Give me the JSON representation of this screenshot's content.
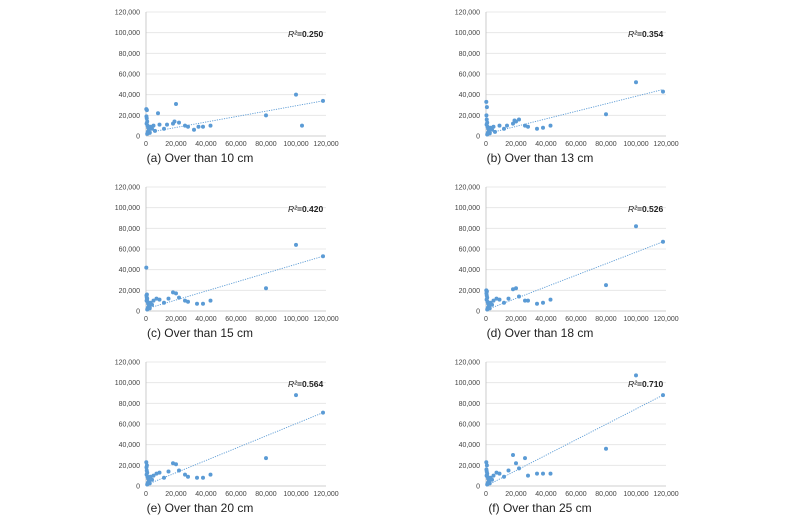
{
  "chart_data": [
    {
      "type": "scatter",
      "caption": "(a) Over than 10 cm",
      "r2_label": "R²",
      "r2_value": "=0.250",
      "xlim": [
        0,
        120000
      ],
      "ylim": [
        0,
        120000
      ],
      "x_ticks": [
        "0",
        "20,000",
        "40,000",
        "60,000",
        "80,000",
        "100,000",
        "120,000"
      ],
      "y_ticks": [
        "0",
        "20,000",
        "40,000",
        "60,000",
        "80,000",
        "100,000",
        "120,000"
      ],
      "trendline": {
        "x": [
          0,
          118000
        ],
        "y": [
          3000,
          34000
        ]
      },
      "points": [
        [
          200,
          26000
        ],
        [
          600,
          25000
        ],
        [
          300,
          19000
        ],
        [
          500,
          17000
        ],
        [
          800,
          14000
        ],
        [
          400,
          12000
        ],
        [
          1000,
          10000
        ],
        [
          1500,
          8000
        ],
        [
          2000,
          6000
        ],
        [
          1200,
          4000
        ],
        [
          2500,
          3000
        ],
        [
          800,
          2000
        ],
        [
          3000,
          9000
        ],
        [
          4000,
          7000
        ],
        [
          5000,
          10000
        ],
        [
          6000,
          5000
        ],
        [
          8000,
          22000
        ],
        [
          9000,
          11000
        ],
        [
          12000,
          7000
        ],
        [
          14000,
          11000
        ],
        [
          18000,
          12000
        ],
        [
          19000,
          14000
        ],
        [
          20000,
          31000
        ],
        [
          22000,
          13000
        ],
        [
          26000,
          10000
        ],
        [
          28000,
          9000
        ],
        [
          32000,
          6000
        ],
        [
          35000,
          9000
        ],
        [
          38000,
          9000
        ],
        [
          43000,
          10000
        ],
        [
          80000,
          20000
        ],
        [
          100000,
          40000
        ],
        [
          104000,
          10000
        ],
        [
          118000,
          34000
        ]
      ]
    },
    {
      "type": "scatter",
      "caption": "(b) Over than 13 cm",
      "r2_label": "R²",
      "r2_value": "=0.354",
      "xlim": [
        0,
        120000
      ],
      "ylim": [
        0,
        120000
      ],
      "x_ticks": [
        "0",
        "20,000",
        "40,000",
        "60,000",
        "80,000",
        "100,000",
        "120,000"
      ],
      "y_ticks": [
        "0",
        "20,000",
        "40,000",
        "60,000",
        "80,000",
        "100,000",
        "120,000"
      ],
      "trendline": {
        "x": [
          0,
          118000
        ],
        "y": [
          2000,
          45000
        ]
      },
      "points": [
        [
          200,
          33000
        ],
        [
          600,
          28000
        ],
        [
          300,
          20000
        ],
        [
          500,
          16000
        ],
        [
          800,
          13000
        ],
        [
          400,
          11000
        ],
        [
          1000,
          9000
        ],
        [
          1500,
          7000
        ],
        [
          2000,
          5000
        ],
        [
          1200,
          3000
        ],
        [
          2500,
          2500
        ],
        [
          800,
          1500
        ],
        [
          3000,
          8000
        ],
        [
          4000,
          6000
        ],
        [
          5000,
          9000
        ],
        [
          6000,
          4000
        ],
        [
          9000,
          10000
        ],
        [
          12000,
          7000
        ],
        [
          14000,
          10000
        ],
        [
          18000,
          12000
        ],
        [
          19000,
          15000
        ],
        [
          20000,
          14000
        ],
        [
          22000,
          16000
        ],
        [
          26000,
          10000
        ],
        [
          28000,
          9000
        ],
        [
          34000,
          7000
        ],
        [
          38000,
          8000
        ],
        [
          43000,
          10000
        ],
        [
          80000,
          21000
        ],
        [
          100000,
          52000
        ],
        [
          118000,
          43000
        ]
      ]
    },
    {
      "type": "scatter",
      "caption": "(c) Over than 15 cm",
      "r2_label": "R²",
      "r2_value": "=0.420",
      "xlim": [
        0,
        120000
      ],
      "ylim": [
        0,
        120000
      ],
      "x_ticks": [
        "0",
        "20,000",
        "40,000",
        "60,000",
        "80,000",
        "100,000",
        "120,000"
      ],
      "y_ticks": [
        "0",
        "20,000",
        "40,000",
        "60,000",
        "80,000",
        "100,000",
        "120,000"
      ],
      "trendline": {
        "x": [
          0,
          118000
        ],
        "y": [
          2000,
          53000
        ]
      },
      "points": [
        [
          200,
          42000
        ],
        [
          600,
          16000
        ],
        [
          300,
          15000
        ],
        [
          500,
          13000
        ],
        [
          800,
          12000
        ],
        [
          400,
          10000
        ],
        [
          1000,
          9000
        ],
        [
          1500,
          7000
        ],
        [
          2000,
          5000
        ],
        [
          1200,
          3000
        ],
        [
          2500,
          2500
        ],
        [
          800,
          1500
        ],
        [
          3000,
          8000
        ],
        [
          4000,
          6000
        ],
        [
          5000,
          10000
        ],
        [
          7000,
          12000
        ],
        [
          9000,
          11000
        ],
        [
          12000,
          8000
        ],
        [
          15000,
          12000
        ],
        [
          18000,
          18000
        ],
        [
          20000,
          17000
        ],
        [
          22000,
          13000
        ],
        [
          26000,
          10000
        ],
        [
          28000,
          9000
        ],
        [
          34000,
          7000
        ],
        [
          38000,
          7000
        ],
        [
          43000,
          10000
        ],
        [
          80000,
          22000
        ],
        [
          100000,
          64000
        ],
        [
          118000,
          53000
        ]
      ]
    },
    {
      "type": "scatter",
      "caption": "(d) Over than 18 cm",
      "r2_label": "R²",
      "r2_value": "=0.526",
      "xlim": [
        0,
        120000
      ],
      "ylim": [
        0,
        120000
      ],
      "x_ticks": [
        "0",
        "20,000",
        "40,000",
        "60,000",
        "80,000",
        "100,000",
        "120,000"
      ],
      "y_ticks": [
        "0",
        "20,000",
        "40,000",
        "60,000",
        "80,000",
        "100,000",
        "120,000"
      ],
      "trendline": {
        "x": [
          0,
          118000
        ],
        "y": [
          1000,
          67000
        ]
      },
      "points": [
        [
          200,
          20000
        ],
        [
          600,
          19000
        ],
        [
          300,
          17000
        ],
        [
          500,
          15000
        ],
        [
          800,
          13000
        ],
        [
          400,
          11000
        ],
        [
          1000,
          9000
        ],
        [
          1500,
          7000
        ],
        [
          2000,
          5000
        ],
        [
          1200,
          3000
        ],
        [
          2500,
          2500
        ],
        [
          800,
          1500
        ],
        [
          3000,
          8000
        ],
        [
          4000,
          6000
        ],
        [
          5000,
          10000
        ],
        [
          7000,
          12000
        ],
        [
          9000,
          11000
        ],
        [
          12000,
          8000
        ],
        [
          15000,
          12000
        ],
        [
          18000,
          21000
        ],
        [
          20000,
          22000
        ],
        [
          22000,
          14000
        ],
        [
          26000,
          10000
        ],
        [
          28000,
          10000
        ],
        [
          34000,
          7000
        ],
        [
          38000,
          8000
        ],
        [
          43000,
          11000
        ],
        [
          80000,
          25000
        ],
        [
          100000,
          82000
        ],
        [
          118000,
          67000
        ]
      ]
    },
    {
      "type": "scatter",
      "caption": "(e) Over than 20 cm",
      "r2_label": "R²",
      "r2_value": "=0.564",
      "xlim": [
        0,
        120000
      ],
      "ylim": [
        0,
        120000
      ],
      "x_ticks": [
        "0",
        "20,000",
        "40,000",
        "60,000",
        "80,000",
        "100,000",
        "120,000"
      ],
      "y_ticks": [
        "0",
        "20,000",
        "40,000",
        "60,000",
        "80,000",
        "100,000",
        "120,000"
      ],
      "trendline": {
        "x": [
          0,
          118000
        ],
        "y": [
          1000,
          71000
        ]
      },
      "points": [
        [
          200,
          23000
        ],
        [
          600,
          20000
        ],
        [
          300,
          18000
        ],
        [
          500,
          15000
        ],
        [
          800,
          13000
        ],
        [
          400,
          11000
        ],
        [
          1000,
          9000
        ],
        [
          1500,
          7000
        ],
        [
          2000,
          5000
        ],
        [
          1200,
          3000
        ],
        [
          2500,
          2500
        ],
        [
          800,
          1500
        ],
        [
          3000,
          9000
        ],
        [
          4000,
          6000
        ],
        [
          5000,
          10000
        ],
        [
          7000,
          12000
        ],
        [
          9000,
          13000
        ],
        [
          12000,
          8000
        ],
        [
          15000,
          14000
        ],
        [
          18000,
          22000
        ],
        [
          20000,
          21000
        ],
        [
          22000,
          15000
        ],
        [
          26000,
          11000
        ],
        [
          28000,
          9000
        ],
        [
          34000,
          8000
        ],
        [
          38000,
          8000
        ],
        [
          43000,
          11000
        ],
        [
          80000,
          27000
        ],
        [
          100000,
          88000
        ],
        [
          118000,
          71000
        ]
      ]
    },
    {
      "type": "scatter",
      "caption": "(f) Over than 25 cm",
      "r2_label": "R²",
      "r2_value": "=0.710",
      "xlim": [
        0,
        120000
      ],
      "ylim": [
        0,
        120000
      ],
      "x_ticks": [
        "0",
        "20,000",
        "40,000",
        "60,000",
        "80,000",
        "100,000",
        "120,000"
      ],
      "y_ticks": [
        "0",
        "20,000",
        "40,000",
        "60,000",
        "80,000",
        "100,000",
        "120,000"
      ],
      "trendline": {
        "x": [
          0,
          118000
        ],
        "y": [
          0,
          88000
        ]
      },
      "points": [
        [
          200,
          23000
        ],
        [
          600,
          20000
        ],
        [
          300,
          16000
        ],
        [
          500,
          14000
        ],
        [
          800,
          12000
        ],
        [
          400,
          10000
        ],
        [
          1000,
          9000
        ],
        [
          1500,
          7000
        ],
        [
          2000,
          5000
        ],
        [
          1200,
          3000
        ],
        [
          2500,
          2500
        ],
        [
          800,
          1500
        ],
        [
          3000,
          8000
        ],
        [
          4000,
          6000
        ],
        [
          5000,
          10000
        ],
        [
          7000,
          13000
        ],
        [
          9000,
          12000
        ],
        [
          12000,
          9000
        ],
        [
          15000,
          15000
        ],
        [
          18000,
          30000
        ],
        [
          20000,
          22000
        ],
        [
          22000,
          17000
        ],
        [
          26000,
          27000
        ],
        [
          28000,
          10000
        ],
        [
          34000,
          12000
        ],
        [
          38000,
          12000
        ],
        [
          43000,
          12000
        ],
        [
          80000,
          36000
        ],
        [
          100000,
          107000
        ],
        [
          118000,
          88000
        ]
      ]
    }
  ]
}
